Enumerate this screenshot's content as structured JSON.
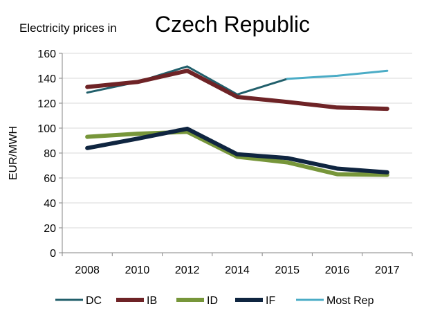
{
  "chart_data": {
    "type": "line",
    "title_prefix": "Electricity prices in",
    "title": "Czech Republic",
    "xlabel": "",
    "ylabel": "EUR/MWH",
    "ylim": [
      0,
      160
    ],
    "yticks": [
      0,
      20,
      40,
      60,
      80,
      100,
      120,
      140,
      160
    ],
    "grid": true,
    "legend_position": "bottom",
    "categories": [
      "2008",
      "2010",
      "2012",
      "2014",
      "2015",
      "2016",
      "2017"
    ],
    "series": [
      {
        "name": "DC",
        "color": "#215f6b",
        "width": 3,
        "values": [
          128.5,
          137,
          149.5,
          127,
          139.5,
          null,
          null
        ]
      },
      {
        "name": "IB",
        "color": "#6e2326",
        "width": 6,
        "values": [
          133,
          137,
          146,
          125,
          121,
          116.5,
          115.5
        ]
      },
      {
        "name": "ID",
        "color": "#77963a",
        "width": 6,
        "values": [
          93,
          95.5,
          97,
          77,
          72.5,
          63,
          62.5
        ]
      },
      {
        "name": "IF",
        "color": "#0f2540",
        "width": 6,
        "values": [
          84,
          91.5,
          99.5,
          79,
          76,
          67.5,
          64.5
        ]
      },
      {
        "name": "Most Rep",
        "color": "#4bacc6",
        "width": 3,
        "values": [
          null,
          null,
          null,
          null,
          139.5,
          142,
          146
        ]
      }
    ]
  }
}
